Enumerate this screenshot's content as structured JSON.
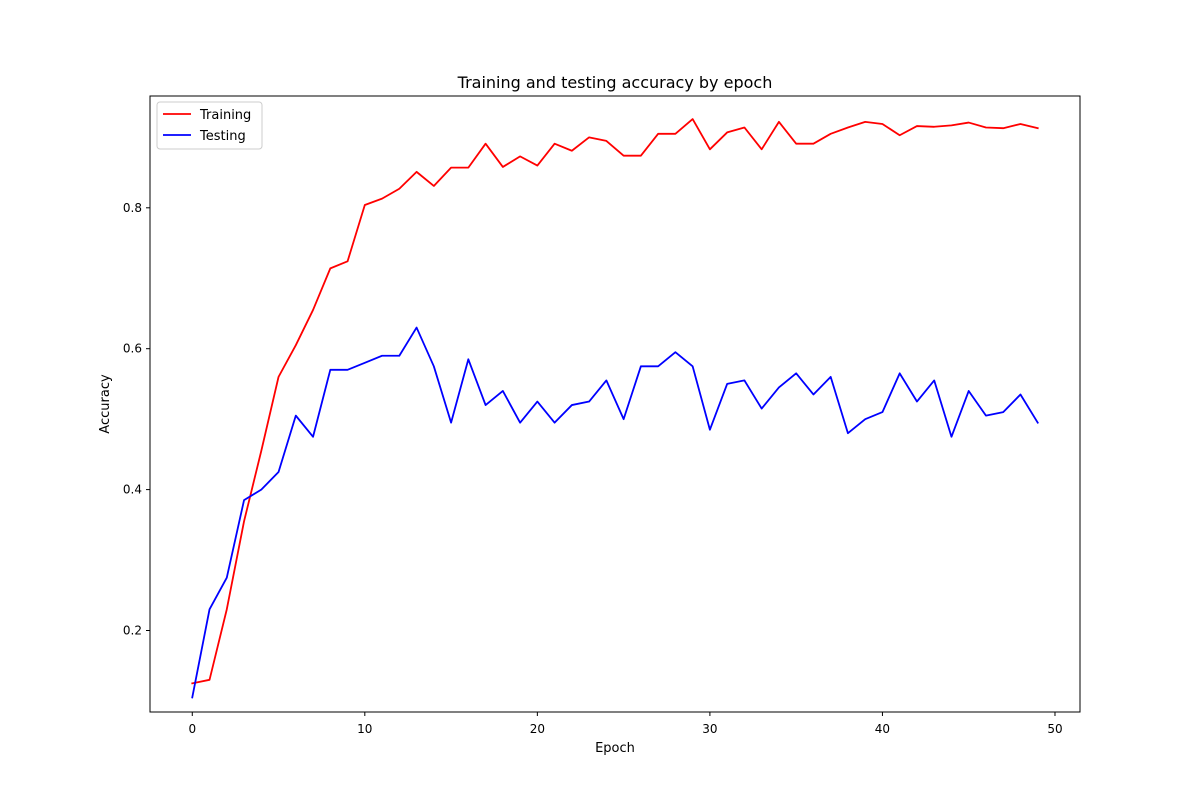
{
  "chart_data": {
    "type": "line",
    "title": "Training and testing accuracy by epoch",
    "xlabel": "Epoch",
    "ylabel": "Accuracy",
    "xlim": [
      -2.45,
      51.45
    ],
    "ylim": [
      0.0843,
      0.9587
    ],
    "xticks": [
      0,
      10,
      20,
      30,
      40,
      50
    ],
    "yticks": [
      0.2,
      0.4,
      0.6,
      0.8
    ],
    "grid": false,
    "legend_position": "top-left",
    "x": [
      0,
      1,
      2,
      3,
      4,
      5,
      6,
      7,
      8,
      9,
      10,
      11,
      12,
      13,
      14,
      15,
      16,
      17,
      18,
      19,
      20,
      21,
      22,
      23,
      24,
      25,
      26,
      27,
      28,
      29,
      30,
      31,
      32,
      33,
      34,
      35,
      36,
      37,
      38,
      39,
      40,
      41,
      42,
      43,
      44,
      45,
      46,
      47,
      48,
      49
    ],
    "series": [
      {
        "name": "Training",
        "color": "#ff0000",
        "values": [
          0.125,
          0.13,
          0.23,
          0.355,
          0.455,
          0.56,
          0.605,
          0.655,
          0.714,
          0.724,
          0.804,
          0.813,
          0.827,
          0.851,
          0.831,
          0.857,
          0.857,
          0.891,
          0.858,
          0.873,
          0.86,
          0.891,
          0.881,
          0.9,
          0.895,
          0.874,
          0.874,
          0.905,
          0.905,
          0.926,
          0.883,
          0.907,
          0.914,
          0.883,
          0.922,
          0.891,
          0.891,
          0.905,
          0.914,
          0.922,
          0.919,
          0.903,
          0.916,
          0.915,
          0.917,
          0.921,
          0.914,
          0.913,
          0.919,
          0.913
        ]
      },
      {
        "name": "Testing",
        "color": "#0000ff",
        "values": [
          0.105,
          0.23,
          0.275,
          0.385,
          0.4,
          0.425,
          0.505,
          0.475,
          0.57,
          0.57,
          0.58,
          0.59,
          0.59,
          0.63,
          0.575,
          0.495,
          0.585,
          0.52,
          0.54,
          0.495,
          0.525,
          0.495,
          0.52,
          0.525,
          0.555,
          0.5,
          0.575,
          0.575,
          0.595,
          0.575,
          0.485,
          0.55,
          0.555,
          0.515,
          0.545,
          0.565,
          0.535,
          0.56,
          0.48,
          0.5,
          0.51,
          0.565,
          0.525,
          0.555,
          0.475,
          0.54,
          0.505,
          0.51,
          0.535,
          0.495
        ]
      }
    ]
  }
}
